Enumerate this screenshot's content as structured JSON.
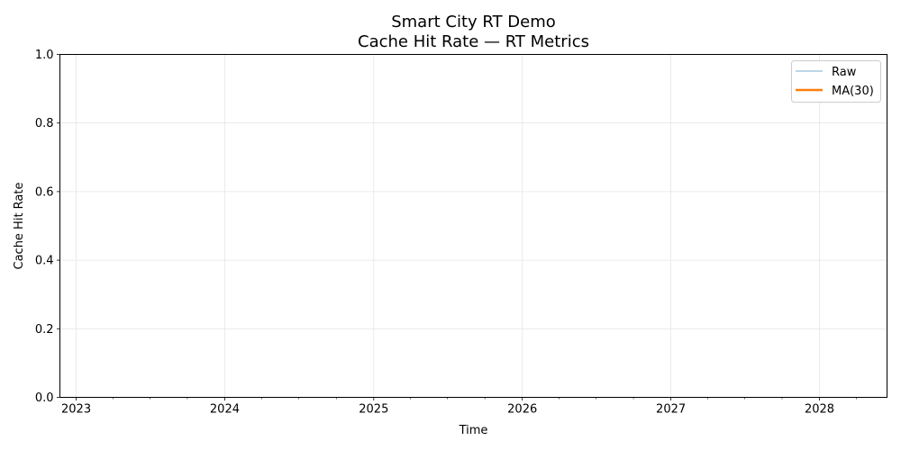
{
  "chart_data": {
    "type": "line",
    "title": "Smart City RT Demo",
    "subtitle": "Cache Hit Rate — RT Metrics",
    "xlabel": "Time",
    "ylabel": "Cache Hit Rate",
    "x_type": "date",
    "xlim": [
      "2022-11-22",
      "2028-06-15"
    ],
    "ylim": [
      0,
      1
    ],
    "x_ticks": [
      "2023",
      "2024",
      "2025",
      "2026",
      "2027",
      "2028"
    ],
    "y_ticks": [
      "0.0",
      "0.2",
      "0.4",
      "0.6",
      "0.8",
      "1.0"
    ],
    "grid": true,
    "legend_position": "top-right",
    "series": [
      {
        "name": "Raw",
        "color": "#a6c8e0",
        "x": [],
        "values": []
      },
      {
        "name": "MA(30)",
        "color": "#ff7f0e",
        "x": [],
        "values": []
      }
    ]
  }
}
